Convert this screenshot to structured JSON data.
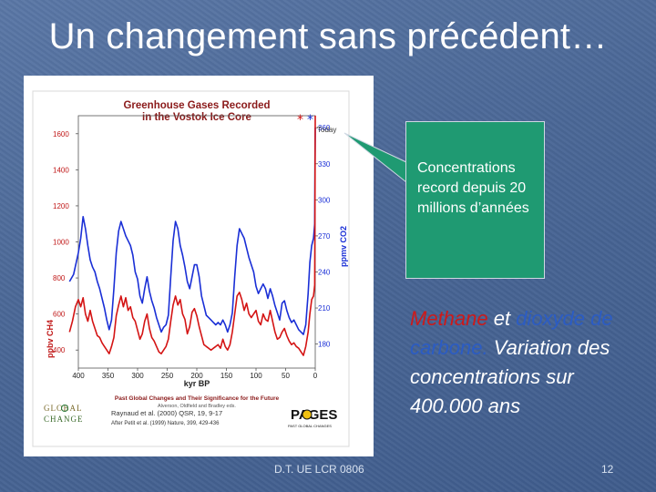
{
  "slide": {
    "title": "Un changement sans précédent…",
    "callout_text": "Concentrations record depuis 20 millions d’années",
    "caption": {
      "methane": "Methane",
      "et": " et ",
      "co2": "dioxyde de carbone.",
      "rest": " Variation des concentrations sur 400.000 ans"
    },
    "footer_left": "D.T. UE LCR 0806",
    "page_number": "12"
  },
  "chart_data": {
    "type": "line",
    "title": "Greenhouse Gases Recorded in the Vostok Ice Core",
    "xlabel": "kyr BP",
    "ylabel_left": "ppbv CH4",
    "ylabel_right": "ppmv CO2",
    "xlim": [
      400,
      0
    ],
    "ylim_left": [
      300,
      1700
    ],
    "ylim_right": [
      160,
      370
    ],
    "x_ticks": [
      "400",
      "350",
      "300",
      "250",
      "200",
      "150",
      "100",
      "50",
      "0"
    ],
    "y_left_ticks": [
      "1600",
      "1400",
      "1200",
      "1000",
      "800",
      "600",
      "400"
    ],
    "y_right_ticks": [
      "360",
      "330",
      "300",
      "270",
      "240",
      "210",
      "180"
    ],
    "today_label": "Today",
    "today_marker": "*",
    "series": [
      {
        "name": "CO2",
        "axis": "right",
        "color": "#1a2fd6",
        "points": [
          [
            415,
            232
          ],
          [
            408,
            238
          ],
          [
            400,
            256
          ],
          [
            396,
            268
          ],
          [
            392,
            286
          ],
          [
            388,
            276
          ],
          [
            384,
            262
          ],
          [
            380,
            250
          ],
          [
            376,
            244
          ],
          [
            372,
            240
          ],
          [
            368,
            232
          ],
          [
            364,
            226
          ],
          [
            360,
            218
          ],
          [
            356,
            210
          ],
          [
            352,
            200
          ],
          [
            348,
            192
          ],
          [
            344,
            200
          ],
          [
            340,
            226
          ],
          [
            336,
            256
          ],
          [
            332,
            274
          ],
          [
            328,
            282
          ],
          [
            324,
            276
          ],
          [
            320,
            270
          ],
          [
            316,
            266
          ],
          [
            312,
            262
          ],
          [
            308,
            254
          ],
          [
            304,
            240
          ],
          [
            300,
            234
          ],
          [
            296,
            220
          ],
          [
            292,
            214
          ],
          [
            288,
            226
          ],
          [
            284,
            236
          ],
          [
            280,
            224
          ],
          [
            276,
            216
          ],
          [
            272,
            210
          ],
          [
            268,
            202
          ],
          [
            264,
            196
          ],
          [
            260,
            190
          ],
          [
            256,
            194
          ],
          [
            252,
            196
          ],
          [
            248,
            204
          ],
          [
            244,
            236
          ],
          [
            240,
            266
          ],
          [
            236,
            282
          ],
          [
            232,
            276
          ],
          [
            228,
            262
          ],
          [
            224,
            254
          ],
          [
            220,
            244
          ],
          [
            216,
            232
          ],
          [
            212,
            226
          ],
          [
            208,
            236
          ],
          [
            204,
            246
          ],
          [
            200,
            246
          ],
          [
            196,
            236
          ],
          [
            192,
            220
          ],
          [
            188,
            212
          ],
          [
            184,
            204
          ],
          [
            180,
            202
          ],
          [
            176,
            200
          ],
          [
            172,
            198
          ],
          [
            168,
            196
          ],
          [
            164,
            198
          ],
          [
            160,
            196
          ],
          [
            156,
            200
          ],
          [
            152,
            196
          ],
          [
            148,
            190
          ],
          [
            144,
            196
          ],
          [
            140,
            206
          ],
          [
            136,
            236
          ],
          [
            132,
            262
          ],
          [
            128,
            276
          ],
          [
            124,
            272
          ],
          [
            120,
            268
          ],
          [
            116,
            260
          ],
          [
            112,
            252
          ],
          [
            108,
            246
          ],
          [
            104,
            240
          ],
          [
            100,
            228
          ],
          [
            96,
            222
          ],
          [
            92,
            226
          ],
          [
            88,
            230
          ],
          [
            84,
            226
          ],
          [
            80,
            218
          ],
          [
            76,
            226
          ],
          [
            72,
            220
          ],
          [
            68,
            212
          ],
          [
            64,
            206
          ],
          [
            60,
            200
          ],
          [
            56,
            214
          ],
          [
            52,
            216
          ],
          [
            48,
            208
          ],
          [
            44,
            202
          ],
          [
            40,
            198
          ],
          [
            36,
            200
          ],
          [
            32,
            196
          ],
          [
            28,
            192
          ],
          [
            24,
            190
          ],
          [
            20,
            188
          ],
          [
            16,
            196
          ],
          [
            12,
            222
          ],
          [
            9,
            248
          ],
          [
            6,
            262
          ],
          [
            3,
            268
          ],
          [
            1,
            280
          ],
          [
            0.5,
            330
          ],
          [
            0,
            360
          ]
        ]
      },
      {
        "name": "CH4",
        "axis": "left",
        "color": "#d41414",
        "points": [
          [
            415,
            500
          ],
          [
            410,
            560
          ],
          [
            405,
            640
          ],
          [
            400,
            680
          ],
          [
            396,
            640
          ],
          [
            392,
            690
          ],
          [
            388,
            600
          ],
          [
            384,
            560
          ],
          [
            380,
            620
          ],
          [
            376,
            560
          ],
          [
            372,
            520
          ],
          [
            368,
            480
          ],
          [
            364,
            470
          ],
          [
            360,
            440
          ],
          [
            356,
            420
          ],
          [
            352,
            400
          ],
          [
            348,
            380
          ],
          [
            344,
            420
          ],
          [
            340,
            470
          ],
          [
            336,
            590
          ],
          [
            332,
            650
          ],
          [
            328,
            700
          ],
          [
            324,
            640
          ],
          [
            320,
            690
          ],
          [
            316,
            620
          ],
          [
            312,
            640
          ],
          [
            308,
            580
          ],
          [
            304,
            560
          ],
          [
            300,
            510
          ],
          [
            296,
            460
          ],
          [
            292,
            490
          ],
          [
            288,
            560
          ],
          [
            284,
            600
          ],
          [
            280,
            520
          ],
          [
            276,
            470
          ],
          [
            272,
            450
          ],
          [
            268,
            420
          ],
          [
            264,
            390
          ],
          [
            260,
            380
          ],
          [
            256,
            400
          ],
          [
            252,
            420
          ],
          [
            248,
            460
          ],
          [
            244,
            560
          ],
          [
            240,
            650
          ],
          [
            236,
            700
          ],
          [
            232,
            650
          ],
          [
            228,
            680
          ],
          [
            224,
            600
          ],
          [
            220,
            570
          ],
          [
            216,
            490
          ],
          [
            212,
            530
          ],
          [
            208,
            610
          ],
          [
            204,
            630
          ],
          [
            200,
            590
          ],
          [
            196,
            530
          ],
          [
            192,
            480
          ],
          [
            188,
            430
          ],
          [
            184,
            420
          ],
          [
            180,
            410
          ],
          [
            176,
            400
          ],
          [
            172,
            410
          ],
          [
            168,
            420
          ],
          [
            164,
            430
          ],
          [
            160,
            410
          ],
          [
            156,
            460
          ],
          [
            152,
            420
          ],
          [
            148,
            400
          ],
          [
            144,
            430
          ],
          [
            140,
            500
          ],
          [
            136,
            600
          ],
          [
            132,
            700
          ],
          [
            128,
            720
          ],
          [
            124,
            680
          ],
          [
            120,
            620
          ],
          [
            116,
            660
          ],
          [
            112,
            600
          ],
          [
            108,
            580
          ],
          [
            104,
            600
          ],
          [
            100,
            620
          ],
          [
            96,
            560
          ],
          [
            92,
            540
          ],
          [
            88,
            600
          ],
          [
            84,
            570
          ],
          [
            80,
            560
          ],
          [
            76,
            620
          ],
          [
            72,
            560
          ],
          [
            68,
            500
          ],
          [
            64,
            460
          ],
          [
            60,
            470
          ],
          [
            56,
            500
          ],
          [
            52,
            520
          ],
          [
            48,
            480
          ],
          [
            44,
            450
          ],
          [
            40,
            430
          ],
          [
            36,
            440
          ],
          [
            32,
            420
          ],
          [
            28,
            410
          ],
          [
            24,
            390
          ],
          [
            20,
            370
          ],
          [
            16,
            420
          ],
          [
            12,
            500
          ],
          [
            9,
            600
          ],
          [
            6,
            680
          ],
          [
            3,
            700
          ],
          [
            1,
            760
          ],
          [
            0.5,
            1200
          ],
          [
            0,
            1700
          ]
        ]
      }
    ],
    "credits": {
      "line1": "Past Global Changes and Their Significance for the Future",
      "line2": "Alverson, Oldfield and Bradley eds.",
      "line3": "Raynaud et al. (2000) QSR, 19, 9-17",
      "line4": "After Petit et al. (1999) Nature, 399, 429-436",
      "logo_left": "GLOBAL CHANGE",
      "logo_right": "PAGES"
    }
  }
}
